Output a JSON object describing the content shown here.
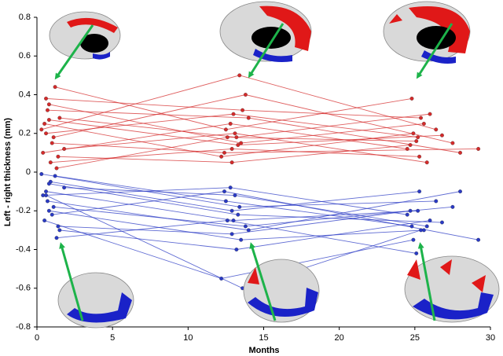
{
  "chart_data": {
    "type": "line",
    "xlabel": "Months",
    "ylabel": "Left - right thickness (mm)",
    "xlim": [
      0,
      30
    ],
    "xticks": [
      0,
      5,
      10,
      15,
      20,
      25,
      30
    ],
    "ylim": [
      -0.8,
      0.8
    ],
    "yticks": [
      0.8,
      0.6,
      0.4,
      0.2,
      0,
      -0.2,
      -0.4,
      -0.6,
      -0.8
    ],
    "series": [
      {
        "color": "#d42a2a",
        "x": [
          0.6,
          13.0,
          25.2
        ],
        "values": [
          0.2,
          0.3,
          0.18
        ]
      },
      {
        "color": "#d42a2a",
        "x": [
          1.2,
          12.5,
          24.8
        ],
        "values": [
          0.44,
          0.22,
          0.38
        ]
      },
      {
        "color": "#d42a2a",
        "x": [
          0.8,
          13.5,
          25.6
        ],
        "values": [
          0.35,
          0.15,
          0.25
        ]
      },
      {
        "color": "#d42a2a",
        "x": [
          0.4,
          12.8,
          24.5
        ],
        "values": [
          0.1,
          0.25,
          0.12
        ]
      },
      {
        "color": "#d42a2a",
        "x": [
          1.5,
          13.2,
          26.0
        ],
        "values": [
          0.28,
          0.18,
          0.3
        ]
      },
      {
        "color": "#d42a2a",
        "x": [
          0.9,
          12.9,
          25.3
        ],
        "values": [
          0.05,
          0.12,
          0.08
        ]
      },
      {
        "color": "#d42a2a",
        "x": [
          1.1,
          13.8,
          27.5
        ],
        "values": [
          0.18,
          0.4,
          0.15
        ]
      },
      {
        "color": "#d42a2a",
        "x": [
          0.5,
          12.2,
          24.9
        ],
        "values": [
          0.25,
          0.08,
          0.2
        ]
      },
      {
        "color": "#d42a2a",
        "x": [
          1.8,
          13.1,
          25.8
        ],
        "values": [
          0.12,
          0.2,
          0.05
        ]
      },
      {
        "color": "#d42a2a",
        "x": [
          0.7,
          14.0,
          28.0
        ],
        "values": [
          0.32,
          0.28,
          0.1
        ]
      },
      {
        "color": "#d42a2a",
        "x": [
          1.3,
          12.6,
          25.1
        ],
        "values": [
          0.02,
          0.18,
          0.16
        ]
      },
      {
        "color": "#d42a2a",
        "x": [
          0.3,
          13.4,
          26.4
        ],
        "values": [
          0.22,
          0.5,
          0.22
        ]
      },
      {
        "color": "#d42a2a",
        "x": [
          1.0,
          12.4,
          29.2
        ],
        "values": [
          0.15,
          0.1,
          0.12
        ]
      },
      {
        "color": "#d42a2a",
        "x": [
          0.6,
          13.6,
          25.4
        ],
        "values": [
          0.38,
          0.32,
          0.28
        ]
      },
      {
        "color": "#d42a2a",
        "x": [
          1.4,
          12.9,
          24.7
        ],
        "values": [
          0.08,
          0.05,
          0.14
        ]
      },
      {
        "color": "#d42a2a",
        "x": [
          0.8,
          13.3,
          26.8
        ],
        "values": [
          0.27,
          0.14,
          0.19
        ]
      },
      {
        "color": "#2a3ac4",
        "x": [
          0.6,
          13.0,
          25.2
        ],
        "values": [
          -0.1,
          -0.25,
          -0.2
        ]
      },
      {
        "color": "#2a3ac4",
        "x": [
          1.2,
          12.5,
          24.8
        ],
        "values": [
          -0.02,
          -0.15,
          -0.28
        ]
      },
      {
        "color": "#2a3ac4",
        "x": [
          0.8,
          13.5,
          25.6
        ],
        "values": [
          -0.2,
          -0.35,
          -0.3
        ]
      },
      {
        "color": "#2a3ac4",
        "x": [
          0.4,
          12.8,
          24.5
        ],
        "values": [
          -0.12,
          -0.08,
          -0.22
        ]
      },
      {
        "color": "#2a3ac4",
        "x": [
          1.5,
          13.2,
          26.0
        ],
        "values": [
          -0.3,
          -0.4,
          -0.25
        ]
      },
      {
        "color": "#2a3ac4",
        "x": [
          0.9,
          12.9,
          25.3
        ],
        "values": [
          -0.05,
          -0.2,
          -0.1
        ]
      },
      {
        "color": "#2a3ac4",
        "x": [
          1.1,
          13.8,
          27.5
        ],
        "values": [
          -0.18,
          -0.28,
          -0.18
        ]
      },
      {
        "color": "#2a3ac4",
        "x": [
          0.5,
          12.2,
          24.9
        ],
        "values": [
          -0.25,
          -0.55,
          -0.35
        ]
      },
      {
        "color": "#2a3ac4",
        "x": [
          1.8,
          13.1,
          25.8
        ],
        "values": [
          -0.08,
          -0.12,
          -0.28
        ]
      },
      {
        "color": "#2a3ac4",
        "x": [
          0.7,
          14.0,
          28.0
        ],
        "values": [
          -0.15,
          -0.3,
          -0.1
        ]
      },
      {
        "color": "#2a3ac4",
        "x": [
          1.3,
          12.6,
          25.1
        ],
        "values": [
          -0.34,
          -0.25,
          -0.42
        ]
      },
      {
        "color": "#2a3ac4",
        "x": [
          0.3,
          13.4,
          26.4
        ],
        "values": [
          -0.01,
          -0.18,
          -0.15
        ]
      },
      {
        "color": "#2a3ac4",
        "x": [
          1.0,
          12.4,
          29.2
        ],
        "values": [
          -0.22,
          -0.1,
          -0.35
        ]
      },
      {
        "color": "#2a3ac4",
        "x": [
          0.6,
          13.6,
          25.4
        ],
        "values": [
          -0.12,
          -0.6,
          -0.3
        ]
      },
      {
        "color": "#2a3ac4",
        "x": [
          1.4,
          12.9,
          24.7
        ],
        "values": [
          -0.28,
          -0.32,
          -0.2
        ]
      },
      {
        "color": "#2a3ac4",
        "x": [
          0.8,
          13.3,
          26.8
        ],
        "values": [
          -0.06,
          -0.22,
          -0.26
        ]
      }
    ]
  }
}
